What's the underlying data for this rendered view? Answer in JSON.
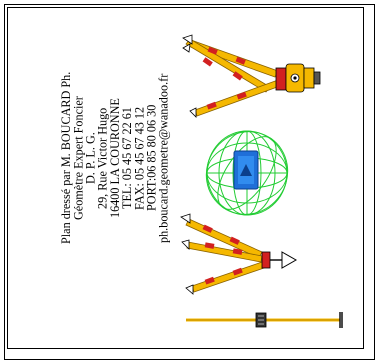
{
  "card": {
    "lines": [
      "Plan dressé par M. BOUCARD Ph.",
      "Géomètre Expert Foncier",
      "D. P. L. G.",
      "29, Rue Victor Hugo",
      "16400 LA COURONNE",
      "TEL: 05 45 67 22 61",
      "FAX: 05 45 67 43 12",
      "PORT:06 85 80 06 30",
      "ph.boucard.geometre@wanadoo.fr"
    ]
  },
  "colors": {
    "tripod_leg": "#f5b800",
    "tripod_band": "#d22020",
    "globe_wire": "#22cc33",
    "globe_badge": "#1f6fd8",
    "frame": "#000000"
  },
  "icons": [
    "theodolite-tripod-icon",
    "globe-wireframe-icon",
    "prism-tripod-icon",
    "survey-rod-icon"
  ]
}
